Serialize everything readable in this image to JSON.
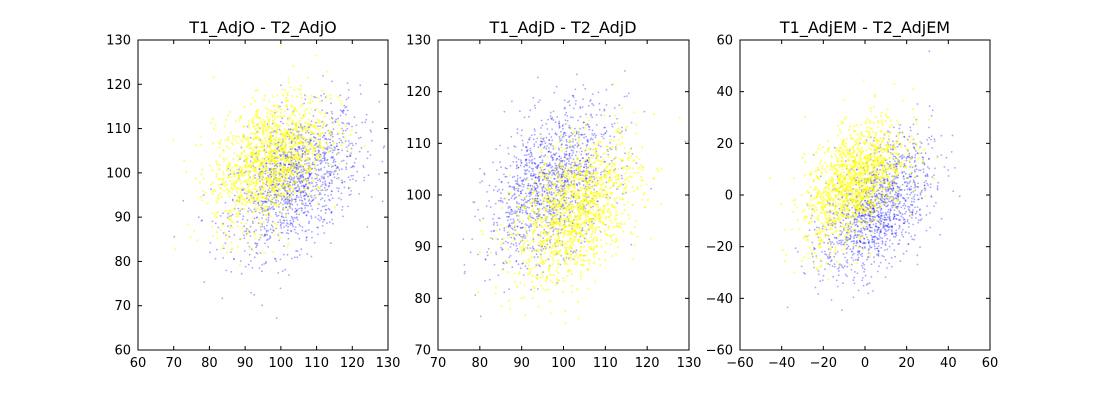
{
  "colors": {
    "series_a": "#0000ff",
    "series_b": "#ffff00",
    "axes": "#000000",
    "background": "#ffffff"
  },
  "chart_data": [
    {
      "type": "scatter",
      "title": "T1_AdjO - T2_AdjO",
      "xlim": [
        60,
        130
      ],
      "ylim": [
        60,
        130
      ],
      "xticks": [
        60,
        70,
        80,
        90,
        100,
        110,
        120,
        130
      ],
      "yticks": [
        60,
        70,
        80,
        90,
        100,
        110,
        120,
        130
      ],
      "grid": false,
      "series": [
        {
          "color": "#0000ff",
          "cloud": {
            "center": [
              104,
              98
            ],
            "sd": [
              9,
              8
            ],
            "correlation": 0.45
          }
        },
        {
          "color": "#ffff00",
          "cloud": {
            "center": [
              97,
              103
            ],
            "sd": [
              8,
              7.5
            ],
            "correlation": 0.4
          }
        }
      ]
    },
    {
      "type": "scatter",
      "title": "T1_AdjD - T2_AdjD",
      "xlim": [
        70,
        130
      ],
      "ylim": [
        70,
        130
      ],
      "xticks": [
        70,
        80,
        90,
        100,
        110,
        120,
        130
      ],
      "yticks": [
        70,
        80,
        90,
        100,
        110,
        120,
        130
      ],
      "grid": false,
      "series": [
        {
          "color": "#0000ff",
          "cloud": {
            "center": [
              97,
              102
            ],
            "sd": [
              7.5,
              7.5
            ],
            "correlation": 0.45
          }
        },
        {
          "color": "#ffff00",
          "cloud": {
            "center": [
              103,
              97
            ],
            "sd": [
              7.5,
              7
            ],
            "correlation": 0.45
          }
        }
      ]
    },
    {
      "type": "scatter",
      "title": "T1_AdjEM - T2_AdjEM",
      "xlim": [
        -60,
        60
      ],
      "ylim": [
        -60,
        60
      ],
      "xticks": [
        -60,
        -40,
        -20,
        0,
        20,
        40,
        60
      ],
      "yticks": [
        -60,
        -40,
        -20,
        0,
        20,
        40,
        60
      ],
      "grid": false,
      "series": [
        {
          "color": "#0000ff",
          "cloud": {
            "center": [
              6,
              -5
            ],
            "sd": [
              13,
              13
            ],
            "correlation": 0.5
          }
        },
        {
          "color": "#ffff00",
          "cloud": {
            "center": [
              -5,
              5
            ],
            "sd": [
              12,
              12
            ],
            "correlation": 0.5
          }
        }
      ]
    }
  ]
}
